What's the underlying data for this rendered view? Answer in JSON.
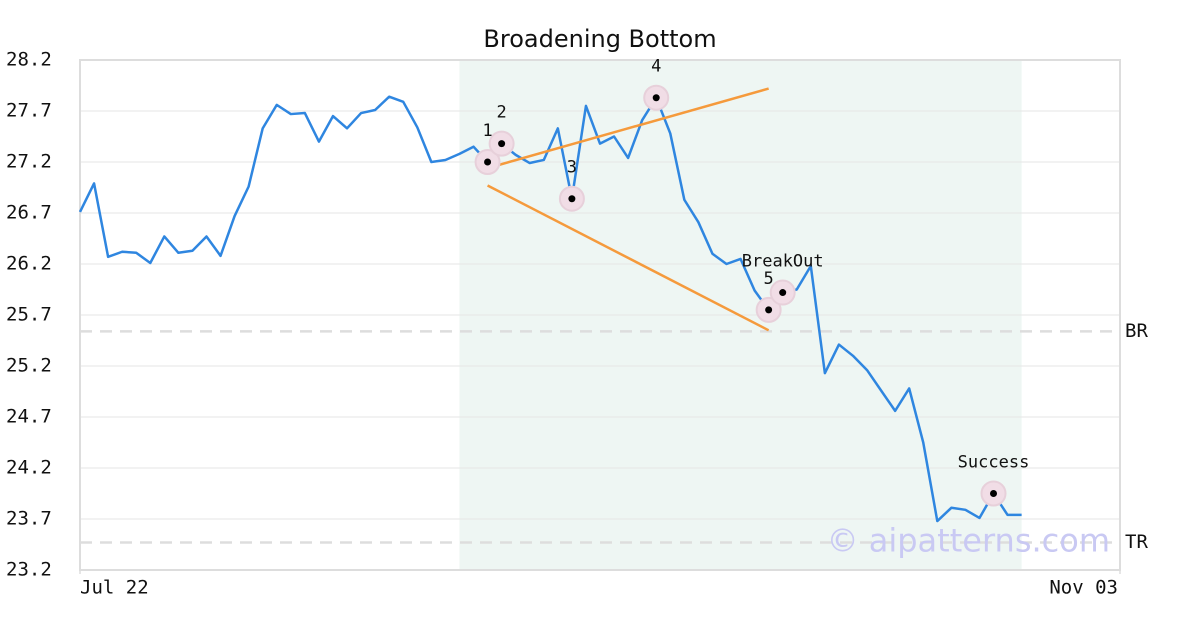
{
  "chart_data": {
    "type": "line",
    "title": "Broadening Bottom",
    "xlim": [
      0,
      74
    ],
    "xticks": [
      {
        "value": 0,
        "label": "Jul 22"
      },
      {
        "value": 74,
        "label": "Nov 03"
      }
    ],
    "ylim": [
      23.2,
      28.2
    ],
    "yticks": [
      23.2,
      23.7,
      24.2,
      24.7,
      25.2,
      25.7,
      26.2,
      26.7,
      27.2,
      27.7,
      28.2
    ],
    "grid": true,
    "x": [
      0,
      1,
      2,
      3,
      4,
      5,
      6,
      7,
      8,
      9,
      10,
      11,
      12,
      13,
      14,
      15,
      16,
      17,
      18,
      19,
      20,
      21,
      22,
      23,
      24,
      25,
      26,
      27,
      28,
      29,
      30,
      31,
      32,
      33,
      34,
      35,
      36,
      37,
      38,
      39,
      40,
      41,
      42,
      43,
      44,
      45,
      46,
      47,
      48,
      49,
      50,
      51,
      52,
      53,
      54,
      55,
      56,
      57,
      58,
      59,
      60,
      61,
      62,
      63,
      64,
      65,
      66,
      67
    ],
    "series": [
      {
        "color": "#2f86e0",
        "values": [
          26.71,
          26.99,
          26.27,
          26.32,
          26.31,
          26.21,
          26.47,
          26.31,
          26.33,
          26.47,
          26.28,
          26.67,
          26.96,
          27.53,
          27.76,
          27.67,
          27.68,
          27.4,
          27.65,
          27.53,
          27.68,
          27.71,
          27.84,
          27.79,
          27.54,
          27.2,
          27.22,
          27.28,
          27.35,
          27.2,
          27.38,
          27.27,
          27.19,
          27.22,
          27.53,
          26.84,
          27.75,
          27.38,
          27.45,
          27.24,
          27.61,
          27.83,
          27.48,
          26.83,
          26.61,
          26.3,
          26.2,
          26.25,
          25.94,
          25.75,
          25.92,
          25.95,
          26.18,
          25.13,
          25.41,
          25.3,
          25.16,
          24.96,
          24.76,
          24.98,
          24.45,
          23.68,
          23.81,
          23.79,
          23.71,
          23.95,
          23.74,
          23.74
        ]
      }
    ],
    "highlight": {
      "x": [
        27,
        67
      ],
      "color": "#eef6f3"
    },
    "points": [
      {
        "label": "1",
        "x": 29,
        "y": 27.2
      },
      {
        "label": "2",
        "x": 30,
        "y": 27.38
      },
      {
        "label": "3",
        "x": 35,
        "y": 26.84
      },
      {
        "label": "4",
        "x": 41,
        "y": 27.83
      },
      {
        "label": "5",
        "x": 49,
        "y": 25.75
      },
      {
        "label": "BreakOut",
        "x": 50,
        "y": 25.92
      },
      {
        "label": "Success",
        "x": 65,
        "y": 23.95
      }
    ],
    "trend_lines": [
      {
        "color": "#f59a3c",
        "x": [
          29,
          49
        ],
        "y": [
          27.14,
          27.92
        ]
      },
      {
        "color": "#f59a3c",
        "x": [
          29,
          49
        ],
        "y": [
          26.97,
          25.55
        ]
      }
    ],
    "levels": [
      {
        "label": "BR",
        "y": 25.54
      },
      {
        "label": "TR",
        "y": 23.47
      }
    ],
    "watermark": "© aipatterns.com"
  }
}
